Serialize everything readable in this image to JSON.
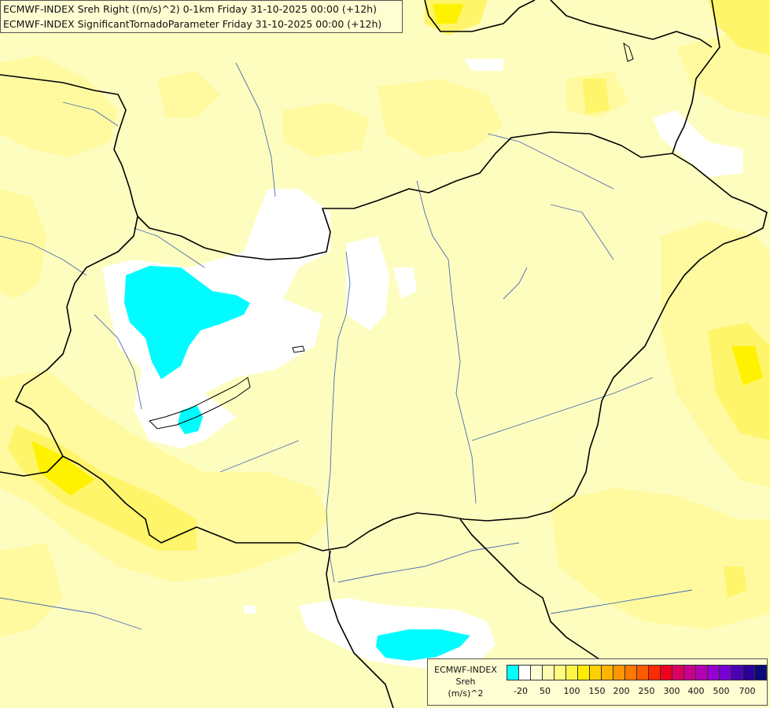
{
  "titles": {
    "line1": "ECMWF-INDEX Sreh Right ((m/s)^2) 0-1km Friday 31-10-2025 00:00 (+12h)",
    "line2": "ECMWF-INDEX SignificantTornadoParameter Friday 31-10-2025 00:00 (+12h)"
  },
  "legend": {
    "label_line1": "ECMWF-INDEX",
    "label_line2": "Sreh",
    "label_line3": "(m/s)^2",
    "colors": [
      "#00ffff",
      "#ffffff",
      "#fffdd5",
      "#fffcb0",
      "#fffa80",
      "#fff54a",
      "#ffec00",
      "#ffd000",
      "#ffb400",
      "#ff9600",
      "#ff7800",
      "#ff5a00",
      "#ff2a00",
      "#f00020",
      "#dc0060",
      "#c8008c",
      "#b400b4",
      "#9600d2",
      "#7800d2",
      "#4a00b4",
      "#2a0096",
      "#0a0a78"
    ],
    "ticks": [
      "-20",
      "50",
      "100",
      "150",
      "200",
      "250",
      "300",
      "400",
      "500",
      "700"
    ]
  },
  "field_colors": {
    "base": "#fefdc0",
    "light": "#fffdd8",
    "mid": "#fffa9c",
    "strong": "#fff56a",
    "max": "#fff200",
    "white": "#ffffff",
    "cyan": "#00fcff"
  },
  "lines": {
    "border": "#000000",
    "river": "#4a6bb0"
  }
}
